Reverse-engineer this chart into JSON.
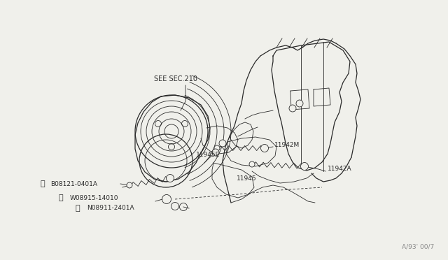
{
  "bg_color": "#f0f0eb",
  "line_color": "#2a2a2a",
  "text_color": "#2a2a2a",
  "watermark": "A/93' 00/7",
  "labels": {
    "see_sec": "SEE SEC.210",
    "l11945E": "11945E",
    "l11942M": "11942M",
    "l11942A": "11942A",
    "l11945": "11945",
    "lB08121": "B08121-0401A",
    "lW08915": "W08915-14010",
    "lN08911": "N08911-2401A"
  },
  "fontsize_label": 6.5,
  "fontsize_watermark": 6.5,
  "lw_main": 0.9,
  "lw_thin": 0.6,
  "lw_thick": 1.1
}
